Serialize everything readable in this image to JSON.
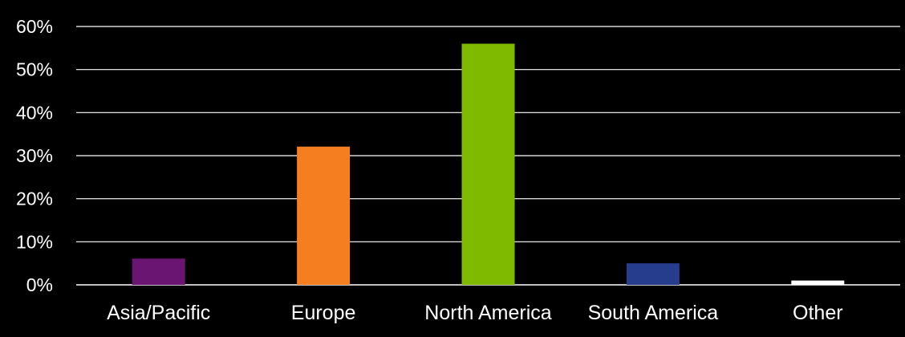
{
  "chart_data": {
    "type": "bar",
    "title": "",
    "xlabel": "",
    "ylabel": "",
    "categories": [
      "Asia/Pacific",
      "Europe",
      "North America",
      "South America",
      "Other"
    ],
    "values": [
      6.1,
      32.1,
      56.0,
      5.0,
      1.0
    ],
    "value_unit": "%",
    "ylim": [
      0,
      60
    ],
    "yticks": [
      "0%",
      "10%",
      "20%",
      "30%",
      "40%",
      "50%",
      "60%"
    ],
    "bar_colors": [
      "#6b1572",
      "#f47e20",
      "#80ba00",
      "#263c8c",
      "#ffffff"
    ],
    "grid": true,
    "legend": "none",
    "background": "#000000",
    "text_color": "#ffffff",
    "gridline_color": "#ffffff"
  }
}
